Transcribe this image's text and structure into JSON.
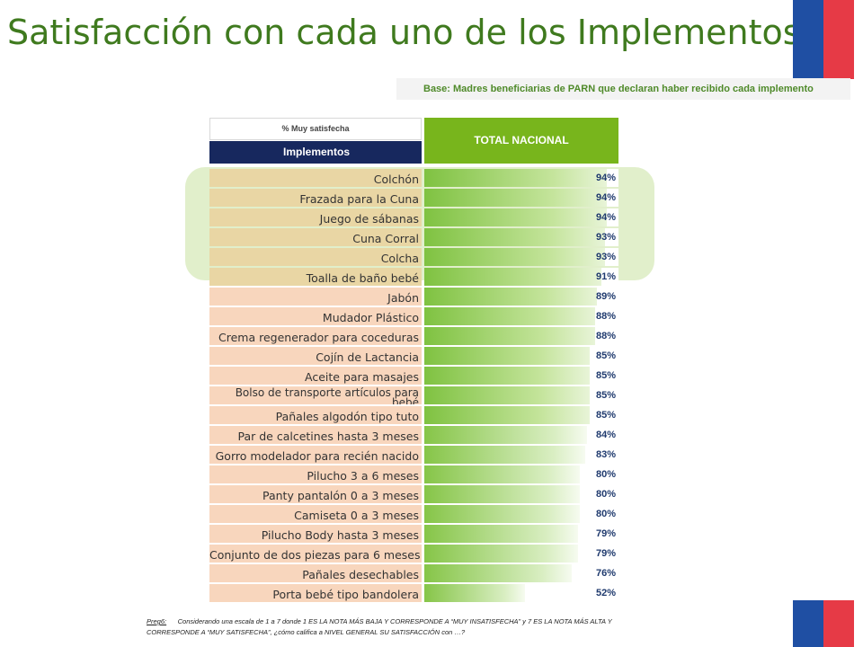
{
  "title": "Satisfacción con cada uno de los Implementos",
  "base_note": "Base: Madres beneficiarias de PARN que declaran haber recibido cada implemento",
  "table": {
    "header_small": "% Muy satisfecha",
    "header_implements": "Implementos",
    "header_total": "TOTAL NACIONAL"
  },
  "colors": {
    "title": "#3f7a1e",
    "total_header": "#78b51c",
    "implements_header": "#17285e",
    "top_label_bg": "#e9d6a4",
    "rest_label_bg": "#f8d6bd",
    "bar": "#7fc241",
    "value_text": "#1f3a6e",
    "flag_blue": "#1f4fa3",
    "flag_red": "#e63a46"
  },
  "chart_data": {
    "type": "bar",
    "orientation": "horizontal",
    "xlim": [
      0,
      100
    ],
    "unit": "%",
    "highlighted_count": 6,
    "rows": [
      {
        "label": "Colchón",
        "value": 94
      },
      {
        "label": "Frazada para la Cuna",
        "value": 94
      },
      {
        "label": "Juego de sábanas",
        "value": 94
      },
      {
        "label": "Cuna Corral",
        "value": 93
      },
      {
        "label": "Colcha",
        "value": 93
      },
      {
        "label": "Toalla de baño bebé",
        "value": 91
      },
      {
        "label": "Jabón",
        "value": 89
      },
      {
        "label": "Mudador Plástico",
        "value": 88
      },
      {
        "label": "Crema regenerador para coceduras",
        "value": 88
      },
      {
        "label": "Cojín de Lactancia",
        "value": 85
      },
      {
        "label": "Aceite para masajes",
        "value": 85
      },
      {
        "label": "Bolso de transporte artículos para bebé",
        "value": 85
      },
      {
        "label": "Pañales algodón tipo tuto",
        "value": 85
      },
      {
        "label": "Par de calcetines hasta 3 meses",
        "value": 84
      },
      {
        "label": "Gorro modelador para recién nacido",
        "value": 83
      },
      {
        "label": "Pilucho 3 a 6 meses",
        "value": 80
      },
      {
        "label": "Panty pantalón 0 a 3 meses",
        "value": 80
      },
      {
        "label": "Camiseta 0 a 3 meses",
        "value": 80
      },
      {
        "label": "Pilucho Body hasta 3 meses",
        "value": 79
      },
      {
        "label": "Conjunto de dos piezas para 6 meses",
        "value": 79
      },
      {
        "label": "Pañales desechables",
        "value": 76
      },
      {
        "label": "Porta bebé tipo bandolera",
        "value": 52
      }
    ]
  },
  "footnote": {
    "ref": "Preg6:",
    "text": "Considerando una escala de 1 a 7 donde 1 ES LA NOTA MÁS BAJA Y CORRESPONDE A “MUY INSATISFECHA” y 7 ES LA NOTA MÁS ALTA Y CORRESPONDE A “MUY SATISFECHA”, ¿cómo califica a NIVEL GENERAL SU SATISFACCIÓN con …?"
  }
}
